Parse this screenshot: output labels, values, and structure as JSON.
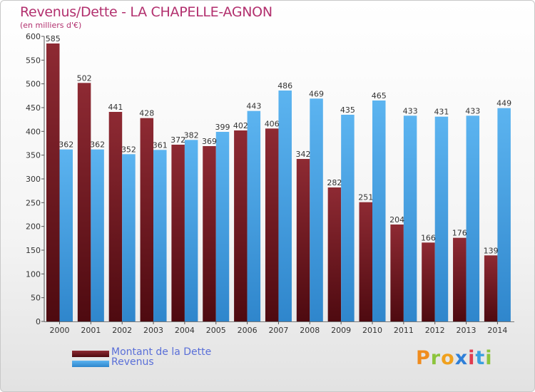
{
  "title": "Revenus/Dette - LA CHAPELLE-AGNON",
  "subtitle": "(en milliers d'€)",
  "colors": {
    "debt": "#7a1f28",
    "revenue": "#4fa8e8",
    "title": "#b2306e",
    "legend_text": "#5a6fd8"
  },
  "legend": {
    "debt_label": "Montant de la Dette",
    "revenue_label": "Revenus"
  },
  "logo": {
    "letters": [
      "P",
      "r",
      "o",
      "x",
      "i",
      "t",
      "i"
    ],
    "colors": [
      "#f08c1e",
      "#8cc43c",
      "#f0a11e",
      "#2f7fd8",
      "#e03c50",
      "#3aa0e0",
      "#8cc43c"
    ]
  },
  "chart_data": {
    "type": "bar",
    "title": "Revenus/Dette - LA CHAPELLE-AGNON",
    "subtitle": "(en milliers d'€)",
    "xlabel": "",
    "ylabel": "",
    "ylim": [
      0,
      600
    ],
    "yticks": [
      0,
      50,
      100,
      150,
      200,
      250,
      300,
      350,
      400,
      450,
      500,
      550,
      600
    ],
    "categories": [
      "2000",
      "2001",
      "2002",
      "2003",
      "2004",
      "2005",
      "2006",
      "2007",
      "2008",
      "2009",
      "2010",
      "2011",
      "2012",
      "2013",
      "2014"
    ],
    "series": [
      {
        "name": "Montant de la Dette",
        "values": [
          585,
          502,
          441,
          428,
          372,
          369,
          402,
          406,
          342,
          282,
          251,
          204,
          166,
          176,
          139
        ]
      },
      {
        "name": "Revenus",
        "values": [
          362,
          362,
          352,
          361,
          382,
          399,
          443,
          486,
          469,
          435,
          465,
          433,
          431,
          433,
          449
        ]
      }
    ],
    "legend_position": "bottom-left",
    "grid": false
  }
}
